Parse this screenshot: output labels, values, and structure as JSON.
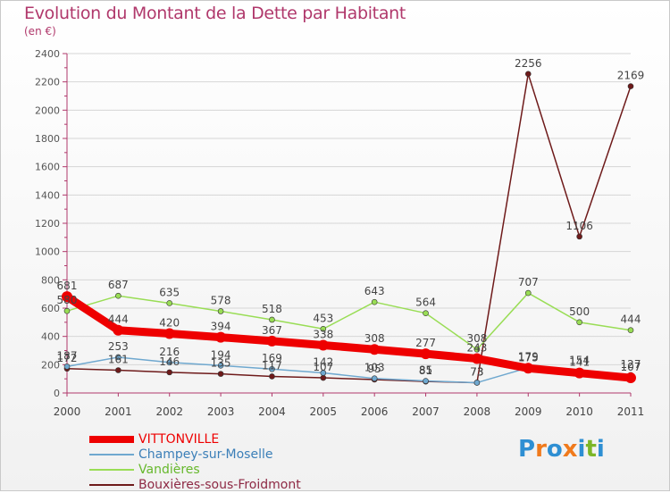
{
  "header": {
    "title": "Evolution du Montant de la Dette par Habitant",
    "unit": "(en €)"
  },
  "logo": {
    "letters": [
      "P",
      "r",
      "o",
      "x",
      "i",
      "t",
      "i"
    ],
    "colors": [
      "#2e8fd3",
      "#f07a1c",
      "#2e8fd3",
      "#f07a1c",
      "#2e8fd3",
      "#7cb627",
      "#2e8fd3"
    ]
  },
  "chart_data": {
    "type": "line",
    "title": "Evolution du Montant de la Dette par Habitant",
    "ylabel": "(en €)",
    "xlabel": "",
    "categories": [
      "2000",
      "2001",
      "2002",
      "2003",
      "2004",
      "2005",
      "2006",
      "2007",
      "2008",
      "2009",
      "2010",
      "2011"
    ],
    "ylim": [
      0,
      2400
    ],
    "yticks": [
      0,
      200,
      400,
      600,
      800,
      1000,
      1200,
      1400,
      1600,
      1800,
      2000,
      2200,
      2400
    ],
    "grid": true,
    "legend_position": "bottom-left",
    "series": [
      {
        "name": "VITTONVILLE",
        "color": "#ee0000",
        "values": [
          681,
          444,
          420,
          394,
          367,
          338,
          308,
          277,
          243,
          175,
          141,
          107
        ]
      },
      {
        "name": "Champey-sur-Moselle",
        "color": "#6fa8cf",
        "values": [
          187,
          253,
          216,
          194,
          169,
          142,
          103,
          85,
          73,
          179,
          154,
          127
        ]
      },
      {
        "name": "Vandières",
        "color": "#99dd55",
        "values": [
          580,
          687,
          635,
          578,
          518,
          453,
          643,
          564,
          308,
          707,
          500,
          444
        ]
      },
      {
        "name": "Bouxières-sous-Froidmont",
        "color": "#6e1a1a",
        "values": [
          172,
          161,
          146,
          135,
          117,
          107,
          95,
          81,
          73,
          2256,
          1106,
          2169
        ]
      }
    ]
  }
}
